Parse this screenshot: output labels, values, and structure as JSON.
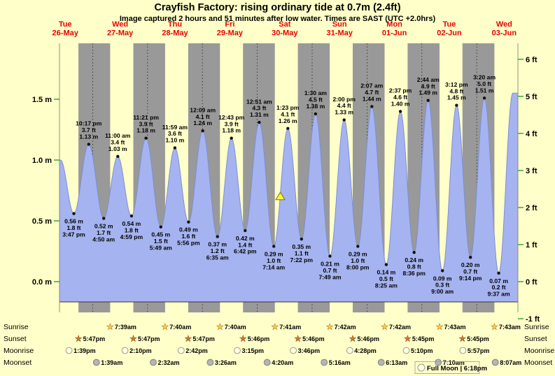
{
  "title": "Crayfish Factory: rising  ordinary tide at 0.7m (2.4ft)",
  "subtitle": "Image captured 2 hours and 51 minutes after low water. Times are SAST (UTC +2.0hrs)",
  "colors": {
    "background": "#ffffc9",
    "night_band": "#999999",
    "tide_fill": "#a5b3f0",
    "tide_stroke": "#7c8fd6",
    "baseline": "#333333",
    "red": "#e80000",
    "tick_green": "#2da02d",
    "dot": "#111111",
    "marker_fill": "#f8f83a",
    "marker_stroke": "#7a7a00",
    "star_sunrise_fill": "#ffd24a",
    "star_sunrise_stroke": "#b85c1e",
    "star_sunset_fill": "#cf7a2e",
    "star_sunset_stroke": "#8a4513",
    "moonrise_fill": "#ffffe4",
    "moonrise_stroke": "#9a9a90",
    "moonset_fill": "#b5b5b5",
    "moonset_stroke": "#808080"
  },
  "chart_data": {
    "type": "area",
    "title": "Crayfish Factory tide curve",
    "ylabel_left": "m",
    "ylabel_right": "ft",
    "ylim_m": [
      -0.3048,
      1.8288
    ],
    "x_range": "Tue 26-May 09:30 to Wed 03-Jun 14:00 (SAST)",
    "day_labels": [
      {
        "weekday": "Tue",
        "date": "26-May"
      },
      {
        "weekday": "Wed",
        "date": "27-May"
      },
      {
        "weekday": "Thu",
        "date": "28-May"
      },
      {
        "weekday": "Fri",
        "date": "29-May"
      },
      {
        "weekday": "Sat",
        "date": "30-May"
      },
      {
        "weekday": "Sun",
        "date": "31-May"
      },
      {
        "weekday": "Mon",
        "date": "01-Jun"
      },
      {
        "weekday": "Tue",
        "date": "02-Jun"
      },
      {
        "weekday": "Wed",
        "date": "03-Jun"
      }
    ],
    "axis_left": [
      {
        "m": 0.0,
        "label": "0.0 m"
      },
      {
        "m": 0.5,
        "label": "0.5 m"
      },
      {
        "m": 1.0,
        "label": "1.0 m"
      },
      {
        "m": 1.5,
        "label": "1.5 m"
      }
    ],
    "axis_right": [
      {
        "ft": -1,
        "label": "-1 ft"
      },
      {
        "ft": 0,
        "label": "0 ft"
      },
      {
        "ft": 1,
        "label": "1 ft"
      },
      {
        "ft": 2,
        "label": "2 ft"
      },
      {
        "ft": 3,
        "label": "3 ft"
      },
      {
        "ft": 4,
        "label": "4 ft"
      },
      {
        "ft": 5,
        "label": "5 ft"
      },
      {
        "ft": 6,
        "label": "6 ft"
      }
    ],
    "events": [
      {
        "type": "low",
        "d": 0,
        "t": "15:47",
        "height_m": 0.56,
        "m_label": "0.56 m",
        "ft_label": "1.8 ft",
        "time_label": "3:47 pm"
      },
      {
        "type": "high",
        "d": 0,
        "t": "22:17",
        "height_m": 1.13,
        "m_label": "1.13 m",
        "ft_label": "3.7 ft",
        "time_label": "10:17 pm"
      },
      {
        "type": "low",
        "d": 1,
        "t": "04:50",
        "height_m": 0.52,
        "m_label": "0.52 m",
        "ft_label": "1.7 ft",
        "time_label": "4:50 am"
      },
      {
        "type": "high",
        "d": 1,
        "t": "11:00",
        "height_m": 1.03,
        "m_label": "1.03 m",
        "ft_label": "3.4 ft",
        "time_label": "11:00 am"
      },
      {
        "type": "low",
        "d": 1,
        "t": "16:59",
        "height_m": 0.54,
        "m_label": "0.54 m",
        "ft_label": "1.8 ft",
        "time_label": "4:59 pm"
      },
      {
        "type": "high",
        "d": 1,
        "t": "23:21",
        "height_m": 1.18,
        "m_label": "1.18 m",
        "ft_label": "3.9 ft",
        "time_label": "11:21 pm"
      },
      {
        "type": "low",
        "d": 2,
        "t": "05:49",
        "height_m": 0.45,
        "m_label": "0.45 m",
        "ft_label": "1.5 ft",
        "time_label": "5:49 am"
      },
      {
        "type": "high",
        "d": 2,
        "t": "11:59",
        "height_m": 1.1,
        "m_label": "1.10 m",
        "ft_label": "3.6 ft",
        "time_label": "11:59 am"
      },
      {
        "type": "low",
        "d": 2,
        "t": "17:56",
        "height_m": 0.49,
        "m_label": "0.49 m",
        "ft_label": "1.6 ft",
        "time_label": "5:56 pm"
      },
      {
        "type": "high",
        "d": 3,
        "t": "00:09",
        "height_m": 1.24,
        "m_label": "1.24 m",
        "ft_label": "4.1 ft",
        "time_label": "12:09 am"
      },
      {
        "type": "low",
        "d": 3,
        "t": "06:35",
        "height_m": 0.37,
        "m_label": "0.37 m",
        "ft_label": "1.2 ft",
        "time_label": "6:35 am"
      },
      {
        "type": "high",
        "d": 3,
        "t": "12:43",
        "height_m": 1.18,
        "m_label": "1.18 m",
        "ft_label": "3.9 ft",
        "time_label": "12:43 pm"
      },
      {
        "type": "low",
        "d": 3,
        "t": "18:42",
        "height_m": 0.42,
        "m_label": "0.42 m",
        "ft_label": "1.4 ft",
        "time_label": "6:42 pm"
      },
      {
        "type": "high",
        "d": 4,
        "t": "00:51",
        "height_m": 1.31,
        "m_label": "1.31 m",
        "ft_label": "4.3 ft",
        "time_label": "12:51 am"
      },
      {
        "type": "low",
        "d": 4,
        "t": "07:14",
        "height_m": 0.29,
        "m_label": "0.29 m",
        "ft_label": "1.0 ft",
        "time_label": "7:14 am"
      },
      {
        "type": "high",
        "d": 4,
        "t": "13:23",
        "height_m": 1.26,
        "m_label": "1.26 m",
        "ft_label": "4.1 ft",
        "time_label": "1:23 pm"
      },
      {
        "type": "low",
        "d": 4,
        "t": "19:22",
        "height_m": 0.35,
        "m_label": "0.35 m",
        "ft_label": "1.1 ft",
        "time_label": "7:22 pm"
      },
      {
        "type": "high",
        "d": 5,
        "t": "01:30",
        "height_m": 1.38,
        "m_label": "1.38 m",
        "ft_label": "4.5 ft",
        "time_label": "1:30 am"
      },
      {
        "type": "low",
        "d": 5,
        "t": "07:49",
        "height_m": 0.21,
        "m_label": "0.21 m",
        "ft_label": "0.7 ft",
        "time_label": "7:49 am"
      },
      {
        "type": "high",
        "d": 5,
        "t": "14:00",
        "height_m": 1.33,
        "m_label": "1.33 m",
        "ft_label": "4.4 ft",
        "time_label": "2:00 pm"
      },
      {
        "type": "low",
        "d": 5,
        "t": "20:00",
        "height_m": 0.29,
        "m_label": "0.29 m",
        "ft_label": "1.0 ft",
        "time_label": "8:00 pm"
      },
      {
        "type": "high",
        "d": 6,
        "t": "02:07",
        "height_m": 1.44,
        "m_label": "1.44 m",
        "ft_label": "4.7 ft",
        "time_label": "2:07 am"
      },
      {
        "type": "low",
        "d": 6,
        "t": "08:25",
        "height_m": 0.14,
        "m_label": "0.14 m",
        "ft_label": "0.5 ft",
        "time_label": "8:25 am"
      },
      {
        "type": "high",
        "d": 6,
        "t": "14:37",
        "height_m": 1.4,
        "m_label": "1.40 m",
        "ft_label": "4.6 ft",
        "time_label": "2:37 pm"
      },
      {
        "type": "low",
        "d": 6,
        "t": "20:36",
        "height_m": 0.24,
        "m_label": "0.24 m",
        "ft_label": "0.8 ft",
        "time_label": "8:36 pm"
      },
      {
        "type": "high",
        "d": 7,
        "t": "02:44",
        "height_m": 1.49,
        "m_label": "1.49 m",
        "ft_label": "4.9 ft",
        "time_label": "2:44 am"
      },
      {
        "type": "low",
        "d": 7,
        "t": "09:00",
        "height_m": 0.09,
        "m_label": "0.09 m",
        "ft_label": "0.3 ft",
        "time_label": "9:00 am"
      },
      {
        "type": "high",
        "d": 7,
        "t": "15:12",
        "height_m": 1.45,
        "m_label": "1.45 m",
        "ft_label": "4.8 ft",
        "time_label": "3:12 pm"
      },
      {
        "type": "low",
        "d": 7,
        "t": "21:14",
        "height_m": 0.2,
        "m_label": "0.20 m",
        "ft_label": "0.7 ft",
        "time_label": "9:14 pm"
      },
      {
        "type": "high",
        "d": 8,
        "t": "03:20",
        "height_m": 1.51,
        "m_label": "1.51 m",
        "ft_label": "5.0 ft",
        "time_label": "3:20 am"
      },
      {
        "type": "low",
        "d": 8,
        "t": "09:37",
        "height_m": 0.07,
        "m_label": "0.07 m",
        "ft_label": "0.2 ft",
        "time_label": "9:37 am"
      }
    ],
    "edge_extremes": [
      {
        "d": 0,
        "t": "03:40",
        "height_m": 0.5
      },
      {
        "d": 0,
        "t": "09:57",
        "height_m": 1.0
      },
      {
        "d": 8,
        "t": "15:47",
        "height_m": 1.55
      }
    ],
    "marker": {
      "d": 4,
      "t": "10:05",
      "height_m": 0.7
    }
  },
  "astro": {
    "row_labels": {
      "sunrise": "Sunrise",
      "sunset": "Sunset",
      "moonrise": "Moonrise",
      "moonset": "Moonset"
    },
    "sunrise": [
      {
        "d": 1,
        "t": "07:39",
        "label": "7:39am"
      },
      {
        "d": 2,
        "t": "07:40",
        "label": "7:40am"
      },
      {
        "d": 3,
        "t": "07:40",
        "label": "7:40am"
      },
      {
        "d": 4,
        "t": "07:41",
        "label": "7:41am"
      },
      {
        "d": 5,
        "t": "07:42",
        "label": "7:42am"
      },
      {
        "d": 6,
        "t": "07:42",
        "label": "7:42am"
      },
      {
        "d": 7,
        "t": "07:43",
        "label": "7:43am"
      },
      {
        "d": 8,
        "t": "07:43",
        "label": "7:43am"
      }
    ],
    "sunset": [
      {
        "d": 0,
        "t": "17:47",
        "label": "5:47pm"
      },
      {
        "d": 1,
        "t": "17:47",
        "label": "5:47pm"
      },
      {
        "d": 2,
        "t": "17:47",
        "label": "5:47pm"
      },
      {
        "d": 3,
        "t": "17:46",
        "label": "5:46pm"
      },
      {
        "d": 4,
        "t": "17:46",
        "label": "5:46pm"
      },
      {
        "d": 5,
        "t": "17:46",
        "label": "5:46pm"
      },
      {
        "d": 6,
        "t": "17:45",
        "label": "5:45pm"
      },
      {
        "d": 7,
        "t": "17:45",
        "label": "5:45pm"
      }
    ],
    "moonrise": [
      {
        "d": 0,
        "t": "13:39",
        "label": "1:39pm"
      },
      {
        "d": 1,
        "t": "14:10",
        "label": "2:10pm"
      },
      {
        "d": 2,
        "t": "14:42",
        "label": "2:42pm"
      },
      {
        "d": 3,
        "t": "15:15",
        "label": "3:15pm"
      },
      {
        "d": 4,
        "t": "15:46",
        "label": "3:46pm"
      },
      {
        "d": 5,
        "t": "16:28",
        "label": "4:28pm"
      },
      {
        "d": 6,
        "t": "17:10",
        "label": "5:10pm"
      },
      {
        "d": 7,
        "t": "17:57",
        "label": "5:57pm"
      }
    ],
    "moonset": [
      {
        "d": 1,
        "t": "01:39",
        "label": "1:39am"
      },
      {
        "d": 2,
        "t": "02:32",
        "label": "2:32am"
      },
      {
        "d": 3,
        "t": "03:26",
        "label": "3:26am"
      },
      {
        "d": 4,
        "t": "04:20",
        "label": "4:20am"
      },
      {
        "d": 5,
        "t": "05:16",
        "label": "5:16am"
      },
      {
        "d": 6,
        "t": "06:13",
        "label": "6:13am"
      },
      {
        "d": 7,
        "t": "07:10",
        "label": "7:10am"
      },
      {
        "d": 8,
        "t": "08:07",
        "label": "8:07am"
      }
    ]
  },
  "full_moon": {
    "label": "Full Moon",
    "time": "6:18pm",
    "display": "Full Moon | 6:18pm"
  }
}
